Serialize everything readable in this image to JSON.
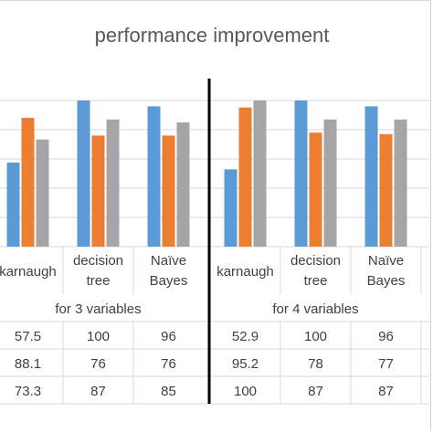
{
  "chart_data": {
    "type": "bar",
    "title": "performance improvement",
    "groups": [
      {
        "label": "for 3 variables",
        "categories": [
          [
            "karnaugh"
          ],
          [
            "decision",
            "tree"
          ],
          [
            "Naïve",
            "Bayes"
          ]
        ],
        "series": [
          {
            "color": "#5B9BD5",
            "values": [
              57.5,
              100,
              96
            ]
          },
          {
            "color": "#ED7D31",
            "values": [
              88.1,
              76,
              76
            ]
          },
          {
            "color": "#A5A5A5",
            "values": [
              73.3,
              87,
              85
            ]
          }
        ]
      },
      {
        "label": "for 4 variables",
        "categories": [
          [
            "karnaugh"
          ],
          [
            "decision",
            "tree"
          ],
          [
            "Naïve",
            "Bayes"
          ]
        ],
        "series": [
          {
            "color": "#5B9BD5",
            "values": [
              52.9,
              100,
              96
            ]
          },
          {
            "color": "#ED7D31",
            "values": [
              95.2,
              78,
              77
            ]
          },
          {
            "color": "#A5A5A5",
            "values": [
              100,
              87,
              87
            ]
          }
        ]
      }
    ],
    "table_rows": [
      [
        "57.5",
        "100",
        "96",
        "52.9",
        "100",
        "96"
      ],
      [
        "88.1",
        "76",
        "76",
        "95.2",
        "78",
        "77"
      ],
      [
        "73.3",
        "87",
        "85",
        "100",
        "87",
        "87"
      ]
    ],
    "ylim": [
      0,
      100
    ],
    "grid": true,
    "separator_color": "#000000"
  }
}
